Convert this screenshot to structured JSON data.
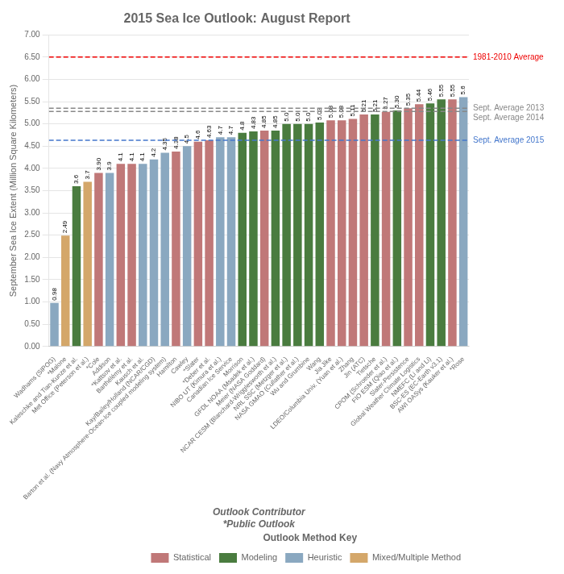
{
  "chart_data": {
    "type": "bar",
    "title": "2015 Sea Ice Outlook: August Report",
    "ylabel": "September Sea Ice Extent (Million Square Kilometers)",
    "xlabel": "Outlook Contributor",
    "categories": [
      "Wadhams (SIPOG)",
      "*Malone",
      "Kaleschke and Tian-Kunze et al.",
      "Met Office (Peterson et al.)",
      "*Cole",
      "Addison",
      "*Kattsov et al.",
      "Barthélémy et al.",
      "Kausch et al.",
      "Kay/Bailey/Holland (NCAR/CGD)",
      "Barton et al. (Navy Atmosphere-Ocean-Ice coupled modeling system)",
      "Hamilton",
      "Cawley",
      "*Slater",
      "*Deber et al.",
      "NIBO UT (Kimura et al.)",
      "Canadian Ice Service",
      "Morrison",
      "GFDL NOAA (Msadek et al.)",
      "Meier (NASA Goddard)",
      "NCAR CESM (Blanchard-Wrigglesworth et al.)",
      "NRL SSC (Metzger et al.)",
      "NASA GMAO (Cullather et al.)",
      "Wu and Grumbine",
      "Wang",
      "Jia Jike",
      "LDEO/Columbia Univ. (Yuan et al.)",
      "Zhang",
      "Jin (ATC)",
      "Tietsche",
      "CPOM (Schroeder et al.)",
      "FIO ESM (Qiao et al.)",
      "Slater-Persistence",
      "Global Weather Climate Logistics",
      "NMEFC (Li and Li)",
      "BSC-ES (EC-Earth v3.1)",
      "AWI OASys (Kauker et al.)",
      "*Rose"
    ],
    "series": [
      {
        "name": "Statistical",
        "color": "#c07878",
        "values": [
          null,
          null,
          null,
          null,
          3.9,
          null,
          4.1,
          4.1,
          null,
          null,
          null,
          4.38,
          null,
          4.6,
          4.63,
          null,
          null,
          null,
          null,
          4.85,
          null,
          null,
          null,
          null,
          null,
          5.08,
          5.08,
          5.11,
          5.21,
          null,
          5.27,
          null,
          5.35,
          5.44,
          null,
          null,
          5.55,
          null
        ],
        "value_labels": [
          null,
          null,
          null,
          null,
          "3.90",
          null,
          "4.1",
          "4.1",
          null,
          null,
          null,
          "4.38",
          null,
          "4.6",
          "4.63",
          null,
          null,
          null,
          null,
          "4.85",
          null,
          null,
          null,
          null,
          null,
          "5.08",
          "5.08",
          "5.11",
          "5.21",
          null,
          "5.27",
          null,
          "5.35",
          "5.44",
          null,
          null,
          "5.55",
          null
        ]
      },
      {
        "name": "Modeling",
        "color": "#4a7c3f",
        "values": [
          null,
          null,
          3.6,
          null,
          null,
          null,
          null,
          null,
          null,
          null,
          null,
          null,
          null,
          null,
          null,
          null,
          null,
          4.8,
          4.83,
          null,
          4.85,
          5.0,
          5.0,
          5.0,
          5.03,
          null,
          null,
          null,
          null,
          5.21,
          null,
          5.3,
          null,
          null,
          5.46,
          5.55,
          null,
          null
        ],
        "value_labels": [
          null,
          null,
          "3.6",
          null,
          null,
          null,
          null,
          null,
          null,
          null,
          null,
          null,
          null,
          null,
          null,
          null,
          null,
          "4.8",
          "4.83",
          null,
          "4.85",
          "5.0",
          "5.0",
          "5.0",
          "5.03",
          null,
          null,
          null,
          null,
          "5.21",
          null,
          "5.30",
          null,
          null,
          "5.46",
          "5.55",
          null,
          null
        ]
      },
      {
        "name": "Heuristic",
        "color": "#8aa8c0",
        "values": [
          0.98,
          null,
          null,
          null,
          null,
          3.9,
          null,
          null,
          4.1,
          4.2,
          4.35,
          null,
          4.5,
          null,
          null,
          4.7,
          4.7,
          null,
          null,
          null,
          null,
          null,
          null,
          null,
          null,
          null,
          null,
          null,
          null,
          null,
          null,
          null,
          null,
          null,
          null,
          null,
          null,
          5.6
        ],
        "value_labels": [
          "0.98",
          null,
          null,
          null,
          null,
          "3.9",
          null,
          null,
          "4.1",
          "4.2",
          "4.35",
          null,
          "4.5",
          null,
          null,
          "4.7",
          "4.7",
          null,
          null,
          null,
          null,
          null,
          null,
          null,
          null,
          null,
          null,
          null,
          null,
          null,
          null,
          null,
          null,
          null,
          null,
          null,
          null,
          "5.6"
        ]
      },
      {
        "name": "Mixed/Multiple Method",
        "color": "#d4a76a",
        "values": [
          null,
          2.49,
          null,
          3.7,
          null,
          null,
          null,
          null,
          null,
          null,
          null,
          null,
          null,
          null,
          null,
          null,
          null,
          null,
          null,
          null,
          null,
          null,
          null,
          null,
          null,
          null,
          null,
          null,
          null,
          null,
          null,
          null,
          null,
          null,
          null,
          null,
          null,
          null
        ],
        "value_labels": [
          null,
          "2.49",
          null,
          "3.7",
          null,
          null,
          null,
          null,
          null,
          null,
          null,
          null,
          null,
          null,
          null,
          null,
          null,
          null,
          null,
          null,
          null,
          null,
          null,
          null,
          null,
          null,
          null,
          null,
          null,
          null,
          null,
          null,
          null,
          null,
          null,
          null,
          null,
          null
        ]
      }
    ],
    "data_labels": true,
    "legend": "lower right",
    "legend_title": "Outlook Method Key",
    "annotations": [
      {
        "type": "hline",
        "y": 6.5,
        "label": "1981-2010 Average",
        "color": "#ee0000",
        "line_style": "dashed"
      },
      {
        "type": "hline",
        "y": 5.35,
        "label": "Sept. Average 2013",
        "color": "#888888",
        "line_style": "dashed"
      },
      {
        "type": "hline",
        "y": 5.28,
        "label": "Sept. Average 2014",
        "color": "#888888",
        "line_style": "dashed"
      },
      {
        "type": "hline",
        "y": 4.63,
        "label": "Sept. Average 2015",
        "color": "#4477cc",
        "line_style": "dashed"
      },
      {
        "type": "note",
        "text": "*Public Outlook"
      }
    ],
    "ylim": [
      0.0,
      7.0
    ],
    "yticks": [
      {
        "value": 0.0,
        "label": "0.00"
      },
      {
        "value": 0.5,
        "label": "0.50"
      },
      {
        "value": 1.0,
        "label": "1.00"
      },
      {
        "value": 1.5,
        "label": "1.50"
      },
      {
        "value": 2.0,
        "label": "2.00"
      },
      {
        "value": 2.5,
        "label": "2.50"
      },
      {
        "value": 3.0,
        "label": "3.00"
      },
      {
        "value": 3.5,
        "label": "3.50"
      },
      {
        "value": 4.0,
        "label": "4.00"
      },
      {
        "value": 4.5,
        "label": "4.50"
      },
      {
        "value": 5.0,
        "label": "5.00"
      },
      {
        "value": 5.5,
        "label": "5.50"
      },
      {
        "value": 6.0,
        "label": "6.00"
      },
      {
        "value": 6.5,
        "label": "6.50"
      },
      {
        "value": 7.0,
        "label": "7.00"
      }
    ],
    "grid": true
  }
}
